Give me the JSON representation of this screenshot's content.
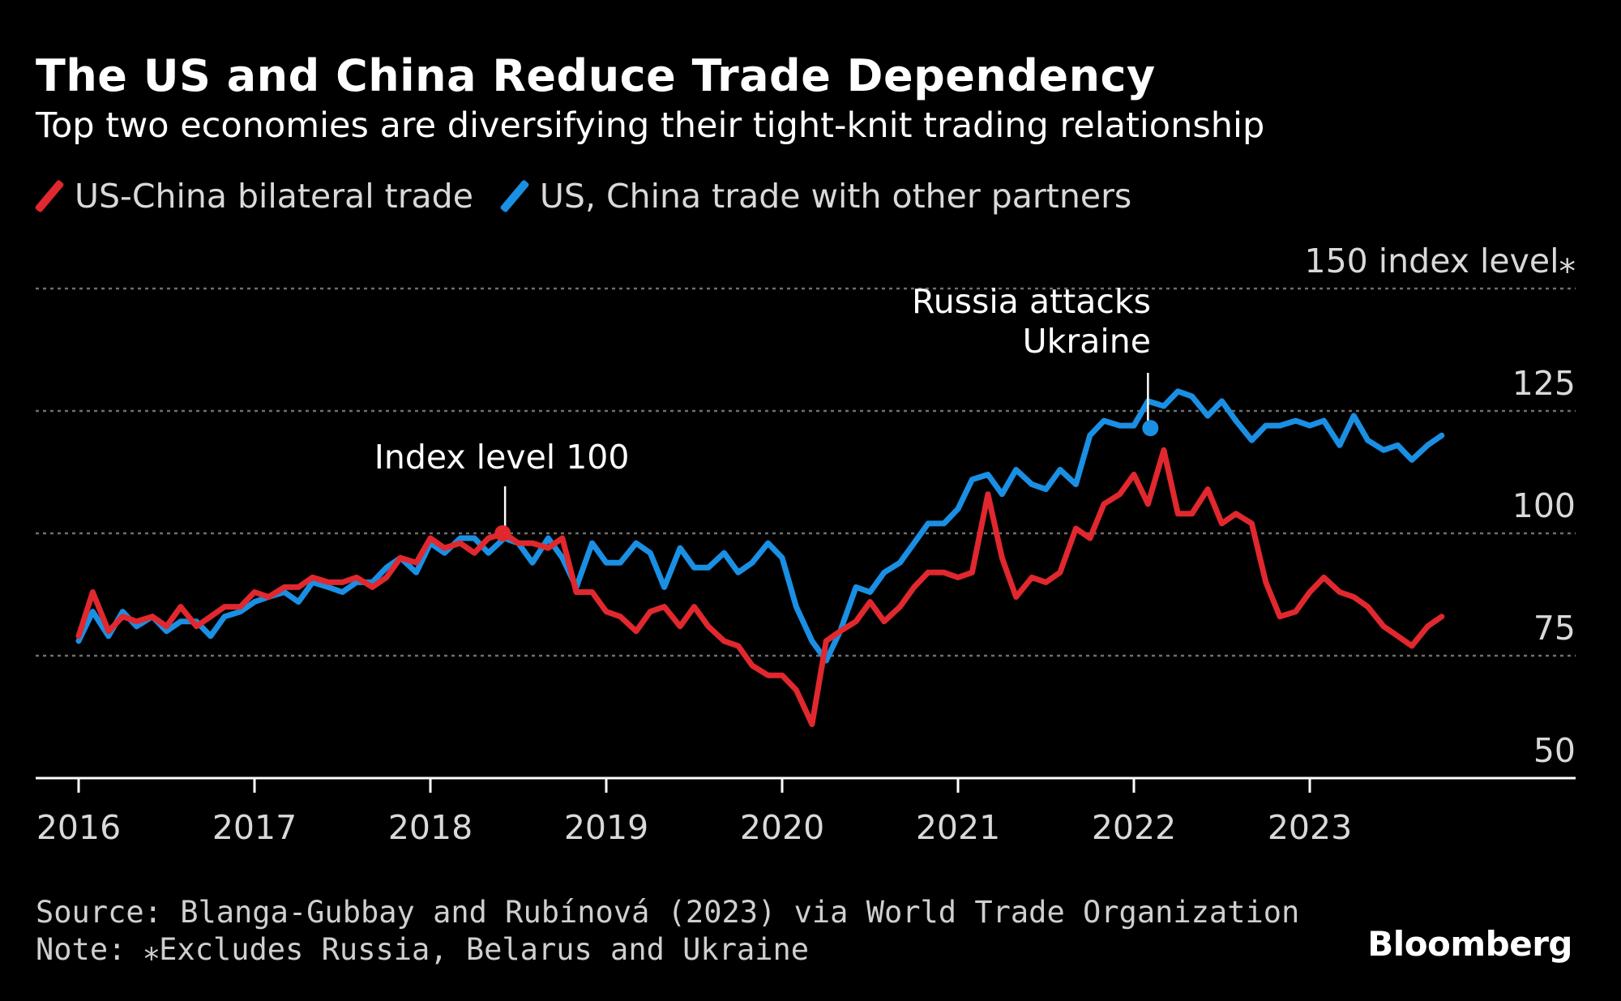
{
  "header": {
    "title": "The US and China Reduce Trade Dependency",
    "subtitle": "Top two economies are diversifying their tight-knit trading relationship"
  },
  "footer": {
    "source": "Source: Blanga-Gubbay and Rubínová (2023) via World Trade Organization",
    "note": "Note: ⁎Excludes Russia, Belarus and Ukraine",
    "brand": "Bloomberg"
  },
  "colors": {
    "background": "#000000",
    "us_china": "#e0282e",
    "other_partners": "#1a8fe3",
    "grid": "#6e6e6e",
    "text": "#ffffff"
  },
  "chart_data": {
    "type": "line",
    "title": "The US and China Reduce Trade Dependency",
    "subtitle": "Top two economies are diversifying their tight-knit trading relationship",
    "legend_position": "top-left",
    "grid": true,
    "ylim": [
      50,
      150
    ],
    "yticks": [
      50,
      75,
      100,
      125,
      150
    ],
    "ytick_labels": [
      "50",
      "75",
      "100",
      "125",
      "150 index level⁎"
    ],
    "xlim": [
      2016,
      2024.5
    ],
    "xticks": [
      2016,
      2017,
      2018,
      2019,
      2020,
      2021,
      2022,
      2023
    ],
    "xtick_labels": [
      "2016",
      "2017",
      "2018",
      "2019",
      "2020",
      "2021",
      "2022",
      "2023"
    ],
    "series": [
      {
        "name": "US-China bilateral trade",
        "color": "#e0282e",
        "x": [
          2016.0,
          2016.08,
          2016.17,
          2016.25,
          2016.33,
          2016.42,
          2016.5,
          2016.58,
          2016.67,
          2016.75,
          2016.83,
          2016.92,
          2017.0,
          2017.08,
          2017.17,
          2017.25,
          2017.33,
          2017.42,
          2017.5,
          2017.58,
          2017.67,
          2017.75,
          2017.83,
          2017.92,
          2018.0,
          2018.08,
          2018.17,
          2018.25,
          2018.33,
          2018.42,
          2018.5,
          2018.58,
          2018.67,
          2018.75,
          2018.83,
          2018.92,
          2019.0,
          2019.08,
          2019.17,
          2019.25,
          2019.33,
          2019.42,
          2019.5,
          2019.58,
          2019.67,
          2019.75,
          2019.83,
          2019.92,
          2020.0,
          2020.08,
          2020.17,
          2020.25,
          2020.33,
          2020.42,
          2020.5,
          2020.58,
          2020.67,
          2020.75,
          2020.83,
          2020.92,
          2021.0,
          2021.08,
          2021.17,
          2021.25,
          2021.33,
          2021.42,
          2021.5,
          2021.58,
          2021.67,
          2021.75,
          2021.83,
          2021.92,
          2022.0,
          2022.08,
          2022.17,
          2022.25,
          2022.33,
          2022.42,
          2022.5,
          2022.58,
          2022.67,
          2022.75,
          2022.83,
          2022.92,
          2023.0,
          2023.08,
          2023.17,
          2023.25,
          2023.33,
          2023.42,
          2023.5,
          2023.58,
          2023.67,
          2023.75
        ],
        "values": [
          79,
          88,
          80,
          83,
          82,
          83,
          81,
          85,
          81,
          83,
          85,
          85,
          88,
          87,
          89,
          89,
          91,
          90,
          90,
          91,
          89,
          91,
          95,
          94,
          99,
          97,
          98,
          96,
          99,
          100,
          98,
          98,
          97,
          99,
          88,
          88,
          84,
          83,
          80,
          84,
          85,
          81,
          85,
          81,
          78,
          77,
          73,
          71,
          71,
          68,
          61,
          78,
          80,
          82,
          86,
          82,
          85,
          89,
          92,
          92,
          91,
          92,
          108,
          95,
          87,
          91,
          90,
          92,
          101,
          99,
          106,
          108,
          112,
          106,
          117,
          104,
          104,
          109,
          102,
          104,
          102,
          90,
          83,
          84,
          88,
          91,
          88,
          87,
          85,
          81,
          79,
          77,
          81,
          83
        ]
      },
      {
        "name": "US, China trade with other partners",
        "color": "#1a8fe3",
        "x": [
          2016.0,
          2016.08,
          2016.17,
          2016.25,
          2016.33,
          2016.42,
          2016.5,
          2016.58,
          2016.67,
          2016.75,
          2016.83,
          2016.92,
          2017.0,
          2017.08,
          2017.17,
          2017.25,
          2017.33,
          2017.42,
          2017.5,
          2017.58,
          2017.67,
          2017.75,
          2017.83,
          2017.92,
          2018.0,
          2018.08,
          2018.17,
          2018.25,
          2018.33,
          2018.42,
          2018.5,
          2018.58,
          2018.67,
          2018.75,
          2018.83,
          2018.92,
          2019.0,
          2019.08,
          2019.17,
          2019.25,
          2019.33,
          2019.42,
          2019.5,
          2019.58,
          2019.67,
          2019.75,
          2019.83,
          2019.92,
          2020.0,
          2020.08,
          2020.17,
          2020.25,
          2020.33,
          2020.42,
          2020.5,
          2020.58,
          2020.67,
          2020.75,
          2020.83,
          2020.92,
          2021.0,
          2021.08,
          2021.17,
          2021.25,
          2021.33,
          2021.42,
          2021.5,
          2021.58,
          2021.67,
          2021.75,
          2021.83,
          2021.92,
          2022.0,
          2022.08,
          2022.17,
          2022.25,
          2022.33,
          2022.42,
          2022.5,
          2022.58,
          2022.67,
          2022.75,
          2022.83,
          2022.92,
          2023.0,
          2023.08,
          2023.17,
          2023.25,
          2023.33,
          2023.42,
          2023.5,
          2023.58,
          2023.67,
          2023.75
        ],
        "values": [
          78,
          84,
          79,
          84,
          81,
          83,
          80,
          82,
          82,
          79,
          83,
          84,
          86,
          87,
          88,
          86,
          90,
          89,
          88,
          90,
          90,
          93,
          95,
          92,
          98,
          96,
          99,
          99,
          96,
          99,
          98,
          94,
          99,
          95,
          89,
          98,
          94,
          94,
          98,
          96,
          89,
          97,
          93,
          93,
          96,
          92,
          94,
          98,
          95,
          85,
          78,
          74,
          80,
          89,
          88,
          92,
          94,
          98,
          102,
          102,
          105,
          111,
          112,
          108,
          113,
          110,
          109,
          113,
          110,
          120,
          123,
          122,
          122,
          127,
          126,
          129,
          128,
          124,
          127,
          123,
          119,
          122,
          122,
          123,
          122,
          123,
          118,
          124,
          119,
          117,
          118,
          115,
          118,
          120
        ]
      }
    ],
    "annotations": [
      {
        "text": "Index level 100",
        "x": 2018.42,
        "y": 100,
        "series": "US-China bilateral trade"
      },
      {
        "text": "Russia attacks Ukraine",
        "x": 2022.08,
        "y": 122,
        "series": "US, China trade with other partners"
      }
    ]
  }
}
